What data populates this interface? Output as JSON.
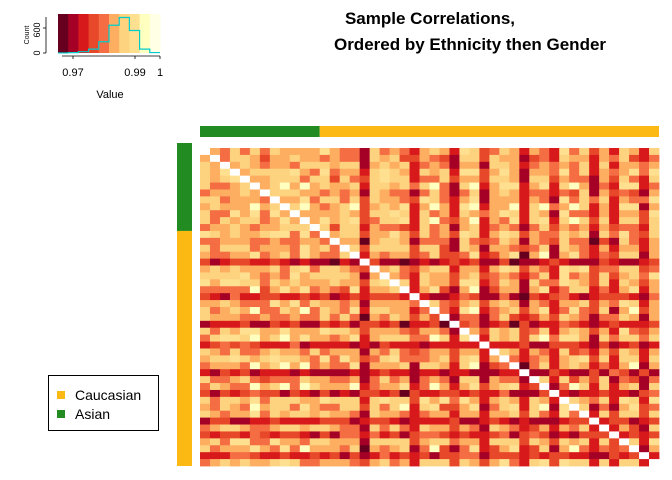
{
  "title": [
    "Sample Correlations,",
    "Ordered by Ethnicity then Gender"
  ],
  "legend": {
    "items": [
      {
        "label": "Caucasian",
        "color": "#FDB913"
      },
      {
        "label": "Asian",
        "color": "#228B22"
      }
    ]
  },
  "chart_data": {
    "type": "heatmap",
    "title": "Sample Correlations, Ordered by Ethnicity then Gender",
    "n_samples": 46,
    "groups": [
      {
        "name": "Asian",
        "count": 12,
        "color": "#228B22"
      },
      {
        "name": "Caucasian",
        "count": 34,
        "color": "#FDB913"
      }
    ],
    "diagonal_value": 1.0,
    "palette": [
      "#67001F",
      "#A50026",
      "#D7191C",
      "#E8482A",
      "#F46D43",
      "#FDAE61",
      "#FED37F",
      "#FEE090",
      "#FFFFBF",
      "#FFFFE5"
    ],
    "color_key": {
      "xlabel": "Value",
      "ylabel": "Count",
      "xticks": [
        "0.97",
        "0.99",
        "1"
      ],
      "yticks": [
        "0",
        "600"
      ],
      "range": [
        0.96,
        1.0
      ],
      "histogram": [
        2,
        8,
        30,
        90,
        260,
        640,
        820,
        520,
        90,
        10
      ]
    },
    "strong_columns": [
      16,
      21,
      25,
      28,
      32,
      35,
      39,
      41,
      44
    ],
    "weak_columns": [
      5,
      8,
      10,
      15,
      20,
      23,
      27,
      31,
      34,
      37,
      43
    ]
  }
}
